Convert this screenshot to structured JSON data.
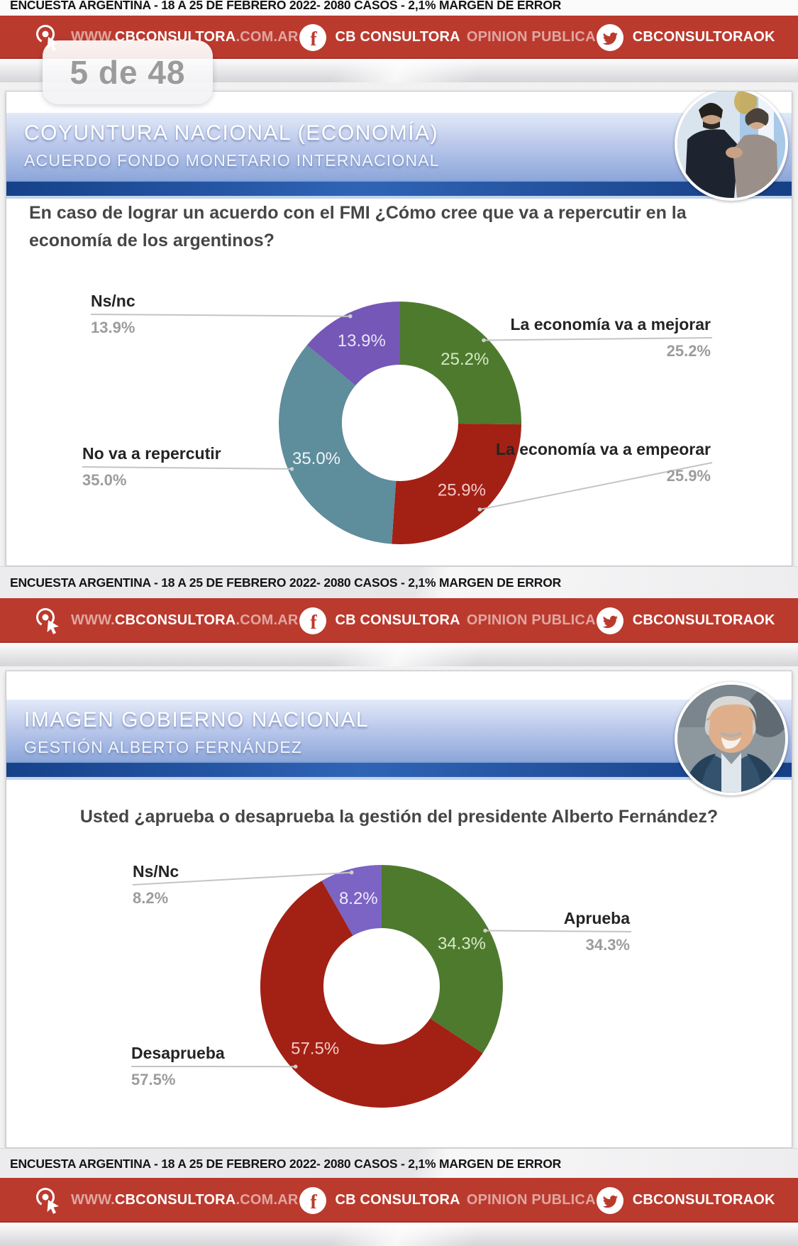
{
  "survey_note": "ENCUESTA ARGENTINA - 18 A 25 DE FEBRERO 2022- 2080 CASOS - 2,1% MARGEN DE ERROR",
  "page_counter": "5 de 48",
  "social_bar": {
    "website": {
      "prefix": "WWW.",
      "brand": "CBCONSULTORA",
      "suffix": ".COM.AR"
    },
    "facebook": {
      "brand": "CB CONSULTORA",
      "secondary": "OPINION PUBLICA"
    },
    "twitter": {
      "handle": "CBCONSULTORAOK"
    }
  },
  "colors": {
    "banner_red": "#bb3a2e",
    "green": "#4e7a2e",
    "red": "#a32015",
    "teal": "#5e8d9c",
    "purple": "#7457b7",
    "purple_2": "#7b64c4",
    "leader_line": "#c4c4c4"
  },
  "slides": [
    {
      "title": "COYUNTURA NACIONAL (ECONOMÍA)",
      "subtitle": "ACUERDO FONDO MONETARIO INTERNACIONAL",
      "question": "En caso de lograr un acuerdo con el FMI ¿Cómo cree que va a repercutir en la economía de los argentinos?",
      "photo": "guzman-georgieva-handshake-photo"
    },
    {
      "title": "IMAGEN GOBIERNO NACIONAL",
      "subtitle": "GESTIÓN ALBERTO FERNÁNDEZ",
      "question": "Usted ¿aprueba o desaprueba la gestión del presidente Alberto Fernández?",
      "photo": "alberto-fernandez-photo"
    }
  ],
  "chart_data": [
    {
      "type": "pie",
      "style": "donut",
      "title": "En caso de lograr un acuerdo con el FMI ¿Cómo cree que va a repercutir en la economía de los argentinos?",
      "start_angle_deg": 0,
      "clockwise": true,
      "legend_position": "outside-callouts",
      "slices": [
        {
          "label": "La economía va a mejorar",
          "value": 25.2,
          "display": "25.2%",
          "color": "#4e7a2e",
          "value_label_color": "#d6e9c6"
        },
        {
          "label": "La economía va a empeorar",
          "value": 25.9,
          "display": "25.9%",
          "color": "#a32015",
          "value_label_color": "#f4cbc7"
        },
        {
          "label": "No va a repercutir",
          "value": 35.0,
          "display": "35.0%",
          "color": "#5e8d9c",
          "value_label_color": "#f0f5f7"
        },
        {
          "label": "Ns/nc",
          "value": 13.9,
          "display": "13.9%",
          "color": "#7457b7",
          "value_label_color": "#eae4f8"
        }
      ]
    },
    {
      "type": "pie",
      "style": "donut",
      "title": "Usted ¿aprueba o desaprueba la gestión del presidente Alberto Fernández?",
      "start_angle_deg": 0,
      "clockwise": true,
      "legend_position": "outside-callouts",
      "slices": [
        {
          "label": "Aprueba",
          "value": 34.3,
          "display": "34.3%",
          "color": "#4e7a2e",
          "value_label_color": "#d6e9c6"
        },
        {
          "label": "Desaprueba",
          "value": 57.5,
          "display": "57.5%",
          "color": "#a32015",
          "value_label_color": "#f4cbc7"
        },
        {
          "label": "Ns/Nc",
          "value": 8.2,
          "display": "8.2%",
          "color": "#7b64c4",
          "value_label_color": "#efeafc"
        }
      ]
    }
  ]
}
